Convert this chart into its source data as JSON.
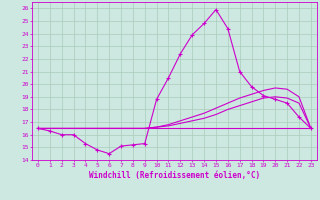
{
  "xlabel": "Windchill (Refroidissement éolien,°C)",
  "bg_color": "#cce8e0",
  "line_color": "#cc00cc",
  "grid_color": "#aaccbb",
  "xlim": [
    -0.5,
    23.5
  ],
  "ylim": [
    14,
    26.5
  ],
  "yticks": [
    14,
    15,
    16,
    17,
    18,
    19,
    20,
    21,
    22,
    23,
    24,
    25,
    26
  ],
  "xticks": [
    0,
    1,
    2,
    3,
    4,
    5,
    6,
    7,
    8,
    9,
    10,
    11,
    12,
    13,
    14,
    15,
    16,
    17,
    18,
    19,
    20,
    21,
    22,
    23
  ],
  "series1_x": [
    0,
    1,
    2,
    3,
    4,
    5,
    6,
    7,
    8,
    9,
    10,
    11,
    12,
    13,
    14,
    15,
    16,
    17,
    18,
    19,
    20,
    21,
    22,
    23
  ],
  "series1_y": [
    16.5,
    16.3,
    16.0,
    16.0,
    15.3,
    14.8,
    14.5,
    15.1,
    15.2,
    15.3,
    18.8,
    20.5,
    22.4,
    23.9,
    24.8,
    25.9,
    24.4,
    21.0,
    19.8,
    19.1,
    18.8,
    18.5,
    17.4,
    16.5
  ],
  "series2_x": [
    0,
    1,
    2,
    3,
    4,
    5,
    6,
    7,
    8,
    9,
    10,
    11,
    12,
    13,
    14,
    15,
    16,
    17,
    18,
    19,
    20,
    21,
    22,
    23
  ],
  "series2_y": [
    16.5,
    16.5,
    16.5,
    16.5,
    16.5,
    16.5,
    16.5,
    16.5,
    16.5,
    16.5,
    16.6,
    16.7,
    16.9,
    17.1,
    17.3,
    17.6,
    18.0,
    18.3,
    18.6,
    18.9,
    19.0,
    18.9,
    18.5,
    16.5
  ],
  "series3_x": [
    0,
    1,
    2,
    3,
    4,
    5,
    6,
    7,
    8,
    9,
    10,
    11,
    12,
    13,
    14,
    15,
    16,
    17,
    18,
    19,
    20,
    21,
    22,
    23
  ],
  "series3_y": [
    16.5,
    16.5,
    16.5,
    16.5,
    16.5,
    16.5,
    16.5,
    16.5,
    16.5,
    16.5,
    16.6,
    16.8,
    17.1,
    17.4,
    17.7,
    18.1,
    18.5,
    18.9,
    19.2,
    19.5,
    19.7,
    19.6,
    19.0,
    16.5
  ],
  "series4_x": [
    0,
    23
  ],
  "series4_y": [
    16.5,
    16.5
  ]
}
